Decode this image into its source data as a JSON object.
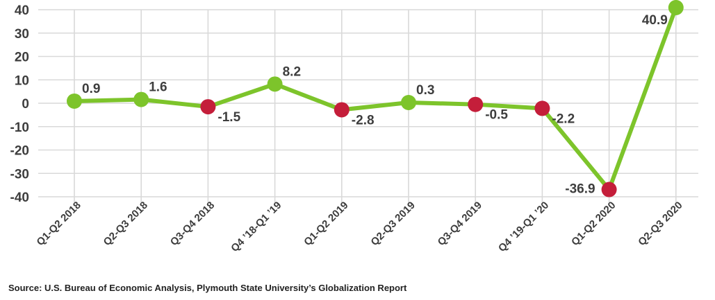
{
  "chart_data": {
    "type": "line",
    "categories": [
      "Q1-Q2 2018",
      "Q2-Q3 2018",
      "Q3-Q4 2018",
      "Q4 ’18-Q1 ’19",
      "Q1-Q2 2019",
      "Q2-Q3 2019",
      "Q3-Q4 2019",
      "Q4 ’19-Q1 ’20",
      "Q1-Q2 2020",
      "Q2-Q3 2020"
    ],
    "values": [
      0.9,
      1.6,
      -1.5,
      8.2,
      -2.8,
      0.3,
      -0.5,
      -2.2,
      -36.9,
      40.9
    ],
    "data_labels": [
      "0.9",
      "1.6",
      "-1.5",
      "8.2",
      "-2.8",
      "0.3",
      "-0.5",
      "-2.2",
      "-36.9",
      "40.9"
    ],
    "y_ticks": [
      "40",
      "30",
      "20",
      "10",
      "0",
      "-10",
      "-20",
      "-30",
      "-40"
    ],
    "ylim": [
      -40,
      40
    ],
    "grid": true,
    "title": "",
    "xlabel": "",
    "ylabel": "",
    "colors": {
      "line": "#7dc42b",
      "positive_marker": "#7dc42b",
      "negative_marker": "#c41e3a",
      "grid": "#d9d9d9",
      "text": "#3d3d3d"
    }
  },
  "source_note": "Source: U.S. Bureau of Economic Analysis, Plymouth State University’s Globalization Report"
}
